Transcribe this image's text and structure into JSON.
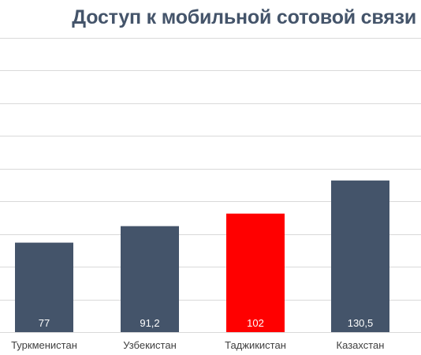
{
  "chart_data": {
    "type": "bar",
    "title": "Доступ к мобильной сотовой связи",
    "categories": [
      "Туркменистан",
      "Узбекистан",
      "Таджикистан",
      "Казахстан"
    ],
    "values": [
      77,
      91.2,
      102,
      130.5
    ],
    "value_labels": [
      "77",
      "91,2",
      "102",
      "130,5"
    ],
    "colors": [
      "#44546a",
      "#44546a",
      "#ff0000",
      "#44546a"
    ],
    "ylim": [
      0,
      200
    ],
    "grid": true,
    "legend": "none"
  }
}
